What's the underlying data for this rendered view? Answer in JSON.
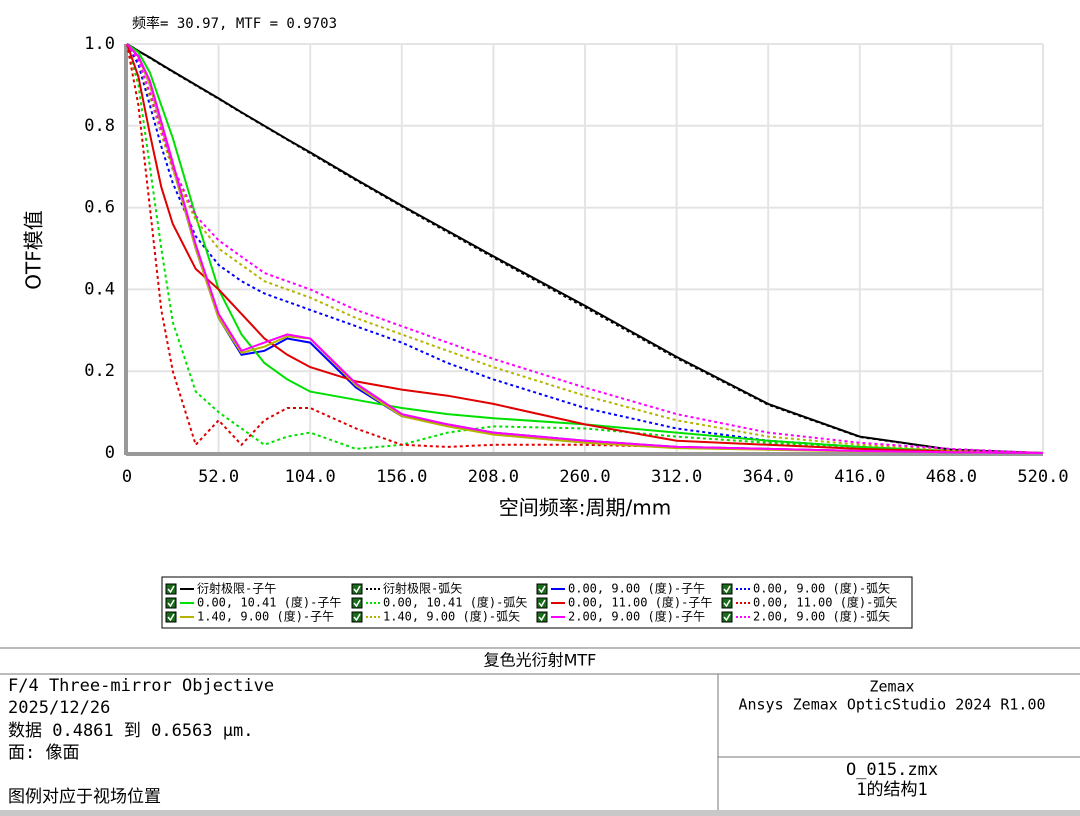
{
  "chart_data": {
    "type": "line",
    "annotation": "频率= 30.97, MTF = 0.9703",
    "y_label": "OTF模值",
    "x_label": "空间频率:周期/mm",
    "xlim": [
      0,
      520
    ],
    "ylim": [
      0,
      1
    ],
    "xticks": [
      0,
      {
        "value": 52,
        "label": "52.0"
      },
      {
        "value": 104,
        "label": "104.0"
      },
      {
        "value": 156,
        "label": "156.0"
      },
      {
        "value": 208,
        "label": "208.0"
      },
      {
        "value": 260,
        "label": "260.0"
      },
      {
        "value": 312,
        "label": "312.0"
      },
      {
        "value": 364,
        "label": "364.0"
      },
      {
        "value": 416,
        "label": "416.0"
      },
      {
        "value": 468,
        "label": "468.0"
      },
      {
        "value": 520,
        "label": "520.0"
      }
    ],
    "yticks": [
      0,
      0.2,
      0.4,
      0.6,
      0.8,
      {
        "value": 1,
        "label": "1.0"
      }
    ],
    "grid": true,
    "x": [
      0,
      6.5,
      13,
      19.5,
      26,
      39,
      52,
      65,
      78,
      91,
      104,
      130,
      156,
      182,
      208,
      260,
      312,
      364,
      416,
      468,
      520
    ],
    "series": [
      {
        "name": "衍射极限-子午",
        "color": "#000000",
        "dashed": false,
        "values": [
          1,
          0.983,
          0.967,
          0.95,
          0.933,
          0.9,
          0.867,
          0.833,
          0.8,
          0.767,
          0.735,
          0.669,
          0.605,
          0.543,
          0.481,
          0.36,
          0.235,
          0.12,
          0.04,
          0.008,
          0
        ]
      },
      {
        "name": "衍射极限-弧矢",
        "color": "#000000",
        "dashed": true,
        "values": [
          1,
          0.983,
          0.966,
          0.949,
          0.932,
          0.899,
          0.866,
          0.832,
          0.799,
          0.766,
          0.733,
          0.667,
          0.603,
          0.54,
          0.478,
          0.356,
          0.232,
          0.118,
          0.039,
          0.008,
          0
        ]
      },
      {
        "name": "0.00, 9.00 (度)-子午",
        "color": "#0000ff",
        "dashed": false,
        "values": [
          1,
          0.97,
          0.9,
          0.8,
          0.7,
          0.5,
          0.33,
          0.24,
          0.25,
          0.28,
          0.27,
          0.16,
          0.09,
          0.07,
          0.05,
          0.03,
          0.015,
          0.01,
          0.005,
          0.002,
          0
        ]
      },
      {
        "name": "0.00, 9.00 (度)-弧矢",
        "color": "#0000ff",
        "dashed": true,
        "values": [
          1,
          0.95,
          0.85,
          0.75,
          0.66,
          0.53,
          0.46,
          0.42,
          0.39,
          0.37,
          0.35,
          0.31,
          0.27,
          0.22,
          0.18,
          0.11,
          0.06,
          0.03,
          0.015,
          0.005,
          0
        ]
      },
      {
        "name": "0.00, 10.41 (度)-子午",
        "color": "#00e000",
        "dashed": false,
        "values": [
          1,
          0.98,
          0.93,
          0.85,
          0.77,
          0.58,
          0.4,
          0.29,
          0.22,
          0.18,
          0.15,
          0.13,
          0.11,
          0.095,
          0.085,
          0.07,
          0.05,
          0.03,
          0.015,
          0.005,
          0
        ]
      },
      {
        "name": "0.00, 10.41 (度)-弧矢",
        "color": "#00e000",
        "dashed": true,
        "values": [
          1,
          0.9,
          0.7,
          0.5,
          0.32,
          0.15,
          0.1,
          0.06,
          0.02,
          0.04,
          0.05,
          0.01,
          0.02,
          0.05,
          0.065,
          0.06,
          0.04,
          0.025,
          0.012,
          0.004,
          0
        ]
      },
      {
        "name": "0.00, 11.00 (度)-子午",
        "color": "#e00000",
        "dashed": false,
        "values": [
          1,
          0.92,
          0.78,
          0.65,
          0.56,
          0.45,
          0.4,
          0.34,
          0.28,
          0.24,
          0.21,
          0.175,
          0.155,
          0.14,
          0.12,
          0.07,
          0.03,
          0.02,
          0.01,
          0.004,
          0
        ]
      },
      {
        "name": "0.00, 11.00 (度)-弧矢",
        "color": "#e00000",
        "dashed": true,
        "values": [
          1,
          0.85,
          0.6,
          0.35,
          0.2,
          0.02,
          0.08,
          0.02,
          0.08,
          0.11,
          0.11,
          0.06,
          0.02,
          0.015,
          0.02,
          0.02,
          0.015,
          0.01,
          0.005,
          0.002,
          0
        ]
      },
      {
        "name": "1.40, 9.00 (度)-子午",
        "color": "#b4b400",
        "dashed": false,
        "values": [
          1,
          0.97,
          0.9,
          0.8,
          0.7,
          0.5,
          0.33,
          0.245,
          0.26,
          0.285,
          0.28,
          0.165,
          0.09,
          0.065,
          0.045,
          0.025,
          0.012,
          0.008,
          0.004,
          0.002,
          0
        ]
      },
      {
        "name": "1.40, 9.00 (度)-弧矢",
        "color": "#b4b400",
        "dashed": true,
        "values": [
          1,
          0.96,
          0.87,
          0.78,
          0.69,
          0.57,
          0.5,
          0.46,
          0.42,
          0.4,
          0.38,
          0.33,
          0.29,
          0.25,
          0.21,
          0.14,
          0.08,
          0.04,
          0.02,
          0.007,
          0
        ]
      },
      {
        "name": "2.00, 9.00 (度)-子午",
        "color": "#ff00ff",
        "dashed": false,
        "values": [
          1,
          0.97,
          0.91,
          0.81,
          0.71,
          0.51,
          0.34,
          0.25,
          0.27,
          0.29,
          0.28,
          0.17,
          0.095,
          0.07,
          0.05,
          0.03,
          0.015,
          0.01,
          0.005,
          0.002,
          0
        ]
      },
      {
        "name": "2.00, 9.00 (度)-弧矢",
        "color": "#ff00ff",
        "dashed": true,
        "values": [
          1,
          0.96,
          0.88,
          0.79,
          0.7,
          0.58,
          0.52,
          0.48,
          0.44,
          0.42,
          0.4,
          0.35,
          0.31,
          0.27,
          0.23,
          0.16,
          0.095,
          0.05,
          0.025,
          0.01,
          0
        ]
      }
    ]
  },
  "info_panel": {
    "title": "复色光衍射MTF",
    "left_lines": [
      "F/4 Three-mirror Objective",
      "2025/12/26",
      "数据 0.4861 到 0.6563 μm.",
      "面: 像面",
      "图例对应于视场位置"
    ],
    "right_top": [
      "Zemax",
      "Ansys Zemax OpticStudio 2024 R1.00"
    ],
    "right_bottom": [
      "O_015.zmx",
      "1的结构1"
    ]
  }
}
